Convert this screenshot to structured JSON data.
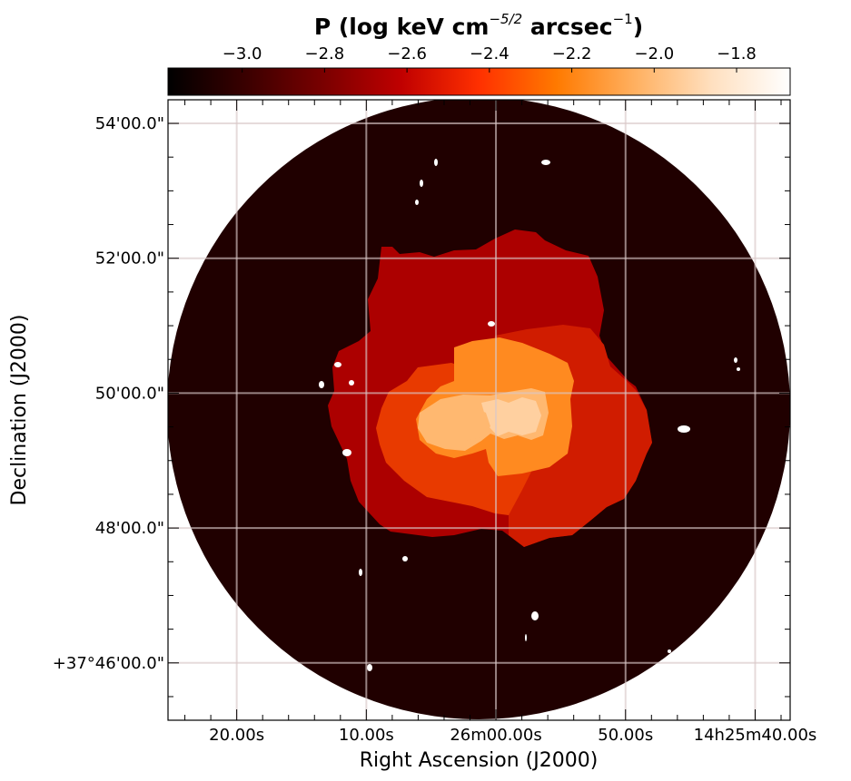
{
  "chart_data": {
    "type": "heatmap",
    "title": {
      "prefix": "P (log keV cm",
      "exp1": "−5/2",
      "middle": " arcsec",
      "exp2": "−1",
      "suffix": ")"
    },
    "xlabel": "Right Ascension (J2000)",
    "ylabel": "Declination (J2000)",
    "colorbar": {
      "orientation": "horizontal",
      "placement": "top",
      "range": [
        -3.18,
        -1.67
      ],
      "ticks": [
        -3.0,
        -2.8,
        -2.6,
        -2.4,
        -2.2,
        -2.0,
        -1.8
      ],
      "tick_labels": [
        "−3.0",
        "−2.8",
        "−2.6",
        "−2.4",
        "−2.2",
        "−2.0",
        "−1.8"
      ],
      "colormap": "gist_heat",
      "stops": [
        "#000000",
        "#3a0000",
        "#7a0000",
        "#c00000",
        "#ff3000",
        "#ff7a00",
        "#ffb060",
        "#ffe0c0",
        "#ffffff"
      ]
    },
    "x_ticks": [
      {
        "label": "20.00s",
        "ra_seconds_offset": 20
      },
      {
        "label": "10.00s",
        "ra_seconds_offset": 10
      },
      {
        "label": "26m00.00s",
        "ra_seconds_offset": 0
      },
      {
        "label": "50.00s",
        "ra_seconds_offset": -10
      },
      {
        "label": "14h25m40.00s",
        "ra_seconds_offset": -20
      }
    ],
    "y_ticks": [
      {
        "label": "54'00.0\"",
        "dec_arcmin_offset": 8
      },
      {
        "label": "52'00.0\"",
        "dec_arcmin_offset": 6
      },
      {
        "label": "50'00.0\"",
        "dec_arcmin_offset": 4
      },
      {
        "label": "48'00.0\"",
        "dec_arcmin_offset": 2
      },
      {
        "label": "+37°46'00.0\"",
        "dec_arcmin_offset": 0
      }
    ],
    "x_range_seconds_offset": [
      25.3,
      -22.7
    ],
    "y_range_arcmin_offset": [
      -0.85,
      8.35
    ],
    "grid": true,
    "regions": [
      {
        "name": "background",
        "value": -3.05,
        "color": "#200000"
      },
      {
        "name": "outer",
        "value": -2.7,
        "color": "#ac0000"
      },
      {
        "name": "ring-southwest",
        "value": -2.55,
        "color": "#c81200"
      },
      {
        "name": "ring-east",
        "value": -2.5,
        "color": "#d01c00"
      },
      {
        "name": "mid",
        "value": -2.3,
        "color": "#e83a00"
      },
      {
        "name": "inner",
        "value": -2.1,
        "color": "#ff8a20"
      },
      {
        "name": "core",
        "value": -1.95,
        "color": "#ffb870"
      },
      {
        "name": "center",
        "value": -1.85,
        "color": "#ffd0a0"
      }
    ]
  }
}
